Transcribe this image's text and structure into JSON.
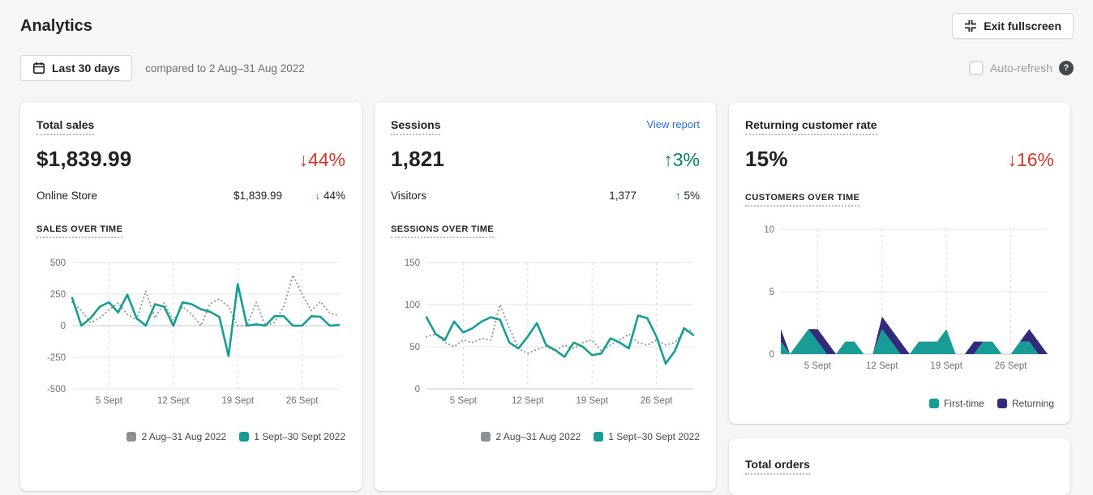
{
  "header": {
    "title": "Analytics",
    "exit_fullscreen_label": "Exit fullscreen"
  },
  "toolbar": {
    "date_range_label": "Last 30 days",
    "compare_text": "compared to 2 Aug–31 Aug 2022",
    "auto_refresh_label": "Auto-refresh",
    "help_icon": "?"
  },
  "colors": {
    "current_period_teal": "#179d96",
    "previous_period_grey": "#999fa4",
    "returning_navy": "#312b7b",
    "negative_red": "#cd3a2a",
    "positive_green": "#0b815a",
    "link_blue": "#2c6ecb"
  },
  "cards": {
    "total_sales": {
      "title": "Total sales",
      "value": "$1,839.99",
      "delta_arrow": "↓",
      "delta": "44%",
      "breakdown": {
        "label": "Online Store",
        "value": "$1,839.99",
        "delta_arrow": "↓",
        "delta": "44%"
      },
      "chart_label": "SALES OVER TIME"
    },
    "sessions": {
      "title": "Sessions",
      "view_report_label": "View report",
      "value": "1,821",
      "delta_arrow": "↑",
      "delta": "3%",
      "breakdown": {
        "label": "Visitors",
        "value": "1,377",
        "delta_arrow": "↑",
        "delta": "5%"
      },
      "chart_label": "SESSIONS OVER TIME"
    },
    "returning_customer_rate": {
      "title": "Returning customer rate",
      "value": "15%",
      "delta_arrow": "↓",
      "delta": "16%",
      "chart_label": "CUSTOMERS OVER TIME"
    },
    "partial_card": {
      "title": "Total orders"
    }
  },
  "chart_data": [
    {
      "type": "line",
      "title": "SALES OVER TIME",
      "x_unit": "day (1–30 Sept 2022, comparison mapped to 2–31 Aug 2022)",
      "n_points": 30,
      "ylim": [
        -500,
        500
      ],
      "yticks": [
        500,
        250,
        0,
        -250,
        -500
      ],
      "xticks": [
        {
          "day": 5,
          "label": "5 Sept"
        },
        {
          "day": 12,
          "label": "12 Sept"
        },
        {
          "day": 19,
          "label": "19 Sept"
        },
        {
          "day": 26,
          "label": "26 Sept"
        }
      ],
      "grid": true,
      "legend_position": "bottom-right",
      "series": [
        {
          "name": "2 Aug–31 Aug 2022",
          "style": "dotted",
          "color": "#999fa4",
          "values": [
            185,
            120,
            25,
            60,
            125,
            180,
            90,
            45,
            275,
            60,
            180,
            45,
            150,
            90,
            0,
            175,
            210,
            150,
            0,
            0,
            185,
            0,
            25,
            150,
            400,
            250,
            120,
            190,
            100,
            80
          ]
        },
        {
          "name": "1 Sept–30 Sept 2022",
          "style": "solid",
          "color": "#179d96",
          "values": [
            220,
            0,
            60,
            150,
            185,
            105,
            245,
            60,
            0,
            170,
            150,
            0,
            185,
            170,
            130,
            110,
            70,
            -240,
            330,
            0,
            10,
            0,
            75,
            75,
            0,
            0,
            75,
            70,
            0,
            5
          ]
        }
      ]
    },
    {
      "type": "line",
      "title": "SESSIONS OVER TIME",
      "x_unit": "day (1–30 Sept 2022, comparison mapped to 2–31 Aug 2022)",
      "n_points": 30,
      "ylim": [
        0,
        150
      ],
      "yticks": [
        150,
        100,
        50,
        0
      ],
      "xticks": [
        {
          "day": 5,
          "label": "5 Sept"
        },
        {
          "day": 12,
          "label": "12 Sept"
        },
        {
          "day": 19,
          "label": "19 Sept"
        },
        {
          "day": 26,
          "label": "26 Sept"
        }
      ],
      "grid": true,
      "legend_position": "bottom-right",
      "series": [
        {
          "name": "2 Aug–31 Aug 2022",
          "style": "dotted",
          "color": "#999fa4",
          "values": [
            62,
            65,
            55,
            50,
            58,
            55,
            60,
            58,
            100,
            72,
            48,
            42,
            47,
            50,
            45,
            52,
            48,
            55,
            58,
            45,
            52,
            58,
            65,
            55,
            52,
            58,
            52,
            55,
            68,
            70
          ]
        },
        {
          "name": "1 Sept–30 Sept 2022",
          "style": "solid",
          "color": "#179d96",
          "values": [
            85,
            65,
            58,
            80,
            67,
            72,
            80,
            85,
            82,
            55,
            48,
            62,
            78,
            52,
            46,
            38,
            55,
            50,
            40,
            42,
            60,
            55,
            48,
            87,
            84,
            62,
            30,
            45,
            72,
            64
          ]
        }
      ]
    },
    {
      "type": "area",
      "stacked": true,
      "title": "CUSTOMERS OVER TIME",
      "x_unit": "day (1–30 Sept 2022)",
      "n_points": 30,
      "ylim": [
        0,
        10
      ],
      "yticks": [
        10,
        5,
        0
      ],
      "xticks": [
        {
          "day": 5,
          "label": "5 Sept"
        },
        {
          "day": 12,
          "label": "12 Sept"
        },
        {
          "day": 19,
          "label": "19 Sept"
        },
        {
          "day": 26,
          "label": "26 Sept"
        }
      ],
      "grid": true,
      "legend_position": "bottom-right",
      "series": [
        {
          "name": "First-time",
          "color": "#179d96",
          "values": [
            1,
            0,
            1,
            2,
            1,
            0,
            0,
            1,
            1,
            0,
            0,
            2,
            1,
            0,
            0,
            1,
            1,
            1,
            2,
            0,
            0,
            0,
            1,
            1,
            0,
            0,
            1,
            1,
            0,
            0
          ]
        },
        {
          "name": "Returning",
          "color": "#312b7b",
          "values": [
            1,
            0,
            0,
            0,
            1,
            1,
            0,
            0,
            0,
            0,
            0,
            1,
            1,
            1,
            0,
            0,
            0,
            0,
            0,
            0,
            0,
            1,
            0,
            0,
            0,
            0,
            0,
            1,
            1,
            0
          ]
        }
      ]
    }
  ]
}
